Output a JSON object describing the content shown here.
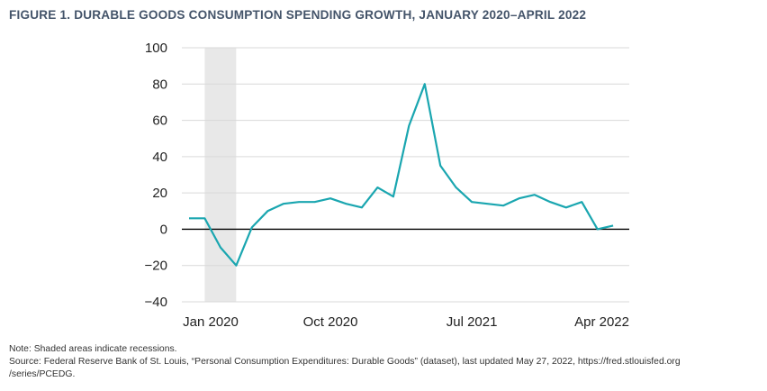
{
  "figure_title": "FIGURE 1. DURABLE GOODS CONSUMPTION SPENDING GROWTH, JANUARY 2020–APRIL 2022",
  "note": "Note: Shaded areas indicate recessions.",
  "source_line1": "Source: Federal Reserve Bank of St. Louis, “Personal Consumption Expenditures: Durable Goods” (dataset), last updated May 27, 2022, https://fred.stlouisfed.org",
  "source_line2": "/series/PCEDG.",
  "colors": {
    "line": "#1aa6b0",
    "recession": "#e8e8e8",
    "grid": "#d9d9d9",
    "zero": "#000000"
  },
  "chart_data": {
    "type": "line",
    "title": "",
    "xlabel": "",
    "ylabel": "",
    "ylim": [
      -40,
      100
    ],
    "yticks": [
      -40,
      -20,
      0,
      20,
      40,
      60,
      80,
      100
    ],
    "ytick_labels": [
      "−40",
      "−20",
      "0",
      "20",
      "40",
      "60",
      "80",
      "100"
    ],
    "xtick_labels": [
      "Jan 2020",
      "Oct 2020",
      "Jul 2021",
      "Apr 2022"
    ],
    "xtick_positions": [
      "2020-01",
      "2020-10",
      "2021-07",
      "2022-04"
    ],
    "grid": true,
    "recession_shading": [
      "2020-02",
      "2020-04"
    ],
    "x": [
      "2020-01",
      "2020-02",
      "2020-03",
      "2020-04",
      "2020-05",
      "2020-06",
      "2020-07",
      "2020-08",
      "2020-09",
      "2020-10",
      "2020-11",
      "2020-12",
      "2021-01",
      "2021-02",
      "2021-03",
      "2021-04",
      "2021-05",
      "2021-06",
      "2021-07",
      "2021-08",
      "2021-09",
      "2021-10",
      "2021-11",
      "2021-12",
      "2022-01",
      "2022-02",
      "2022-03",
      "2022-04"
    ],
    "series": [
      {
        "values": [
          6,
          6,
          -10,
          -20,
          1,
          10,
          14,
          15,
          15,
          17,
          14,
          12,
          23,
          18,
          57,
          80,
          35,
          23,
          15,
          14,
          13,
          17,
          19,
          15,
          12,
          15,
          0,
          2
        ]
      }
    ]
  }
}
